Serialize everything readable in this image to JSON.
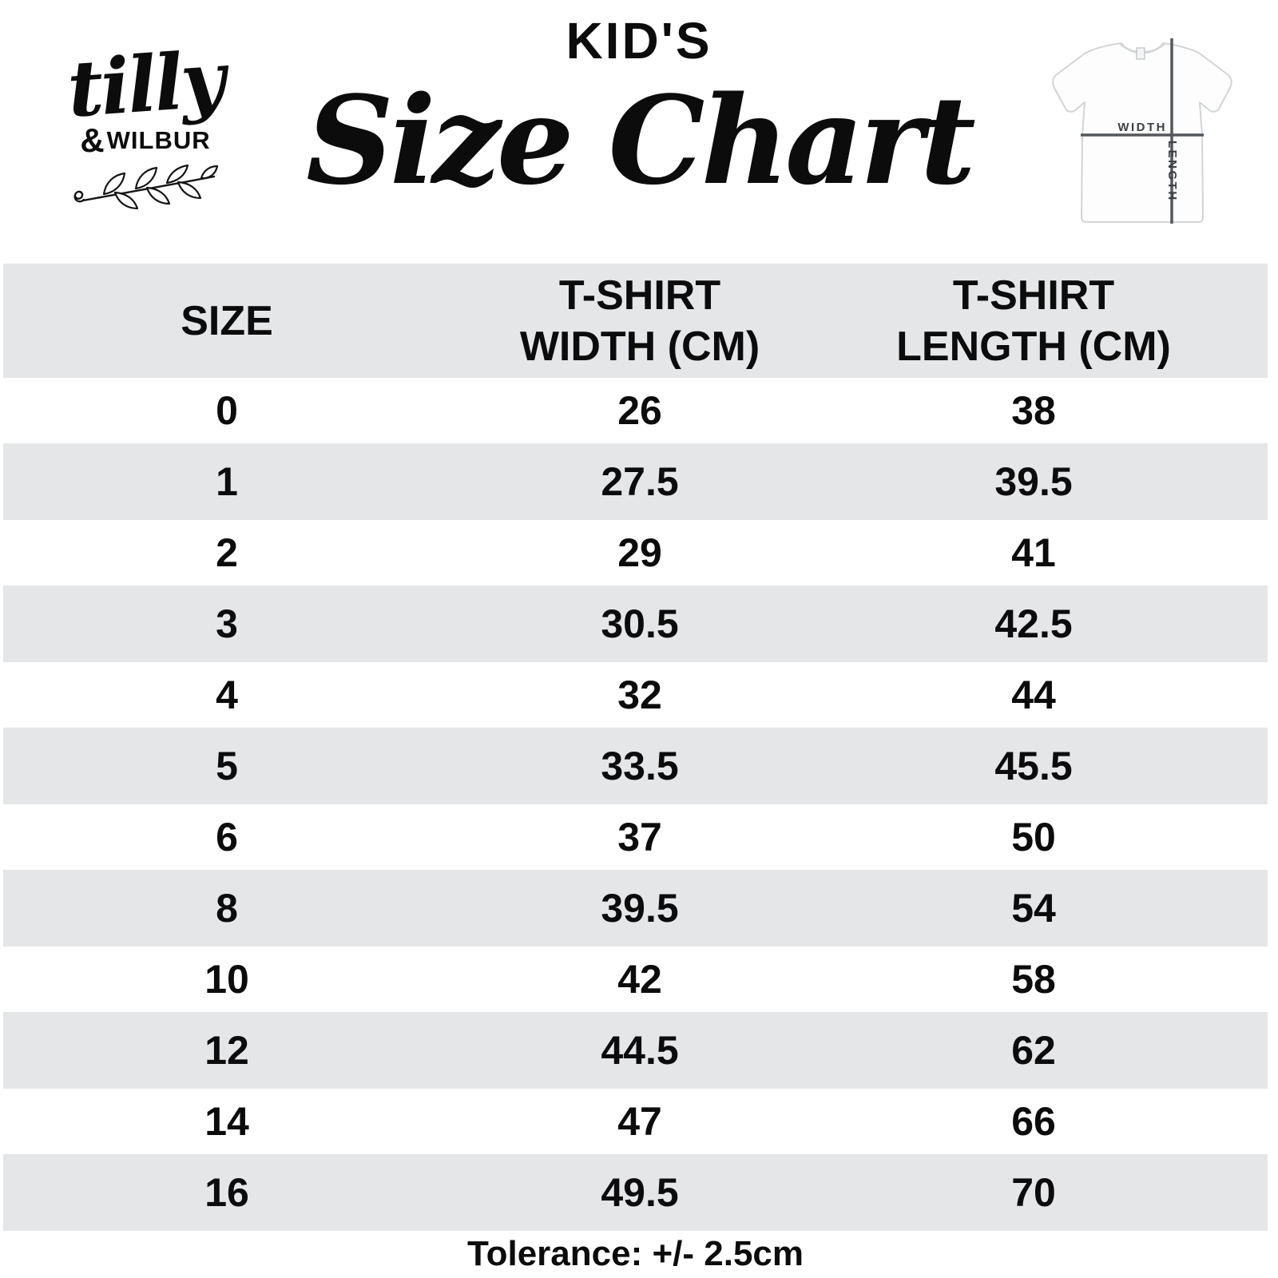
{
  "brand": {
    "script": "tilly",
    "amp": "&",
    "caps": "WILBUR"
  },
  "title": {
    "kicker": "KID'S",
    "main": "Size Chart"
  },
  "diagram": {
    "width_label": "WIDTH",
    "length_label": "LENGTH"
  },
  "table": {
    "columns": [
      {
        "line1": "SIZE",
        "line2": ""
      },
      {
        "line1": "T-SHIRT",
        "line2": "WIDTH (CM)"
      },
      {
        "line1": "T-SHIRT",
        "line2": "LENGTH (CM)"
      }
    ],
    "rows": [
      {
        "size": "0",
        "width": "26",
        "length": "38"
      },
      {
        "size": "1",
        "width": "27.5",
        "length": "39.5"
      },
      {
        "size": "2",
        "width": "29",
        "length": "41"
      },
      {
        "size": "3",
        "width": "30.5",
        "length": "42.5"
      },
      {
        "size": "4",
        "width": "32",
        "length": "44"
      },
      {
        "size": "5",
        "width": "33.5",
        "length": "45.5"
      },
      {
        "size": "6",
        "width": "37",
        "length": "50"
      },
      {
        "size": "8",
        "width": "39.5",
        "length": "54"
      },
      {
        "size": "10",
        "width": "42",
        "length": "58"
      },
      {
        "size": "12",
        "width": "44.5",
        "length": "62"
      },
      {
        "size": "14",
        "width": "47",
        "length": "66"
      },
      {
        "size": "16",
        "width": "49.5",
        "length": "70"
      }
    ]
  },
  "footer": {
    "tolerance": "Tolerance: +/- 2.5cm"
  },
  "colors": {
    "band_gray": "#e5e6e8",
    "text": "#0c0c0c",
    "crosshair_line": "#54585c",
    "shirt_outline": "#d2d4d6"
  },
  "chart_data": {
    "type": "table",
    "title": "KID'S Size Chart",
    "columns": [
      "SIZE",
      "T-SHIRT WIDTH (CM)",
      "T-SHIRT LENGTH (CM)"
    ],
    "rows": [
      [
        0,
        26,
        38
      ],
      [
        1,
        27.5,
        39.5
      ],
      [
        2,
        29,
        41
      ],
      [
        3,
        30.5,
        42.5
      ],
      [
        4,
        32,
        44
      ],
      [
        5,
        33.5,
        45.5
      ],
      [
        6,
        37,
        50
      ],
      [
        8,
        39.5,
        54
      ],
      [
        10,
        42,
        58
      ],
      [
        12,
        44.5,
        62
      ],
      [
        14,
        47,
        66
      ],
      [
        16,
        49.5,
        70
      ]
    ],
    "note": "Tolerance: +/- 2.5cm"
  }
}
